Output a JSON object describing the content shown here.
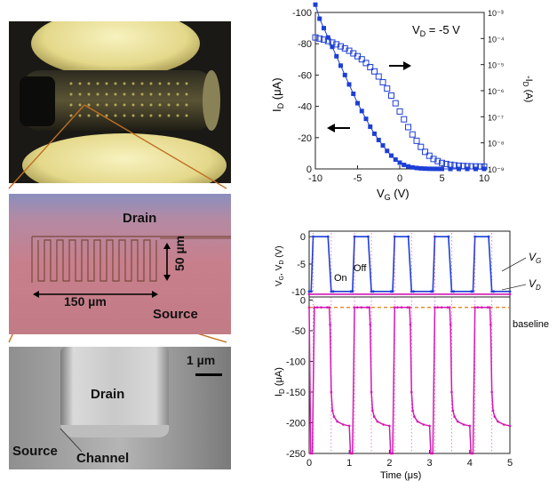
{
  "panels": {
    "optical": {
      "drain_label": "Drain",
      "source_label": "Source",
      "height_label": "50 µm",
      "width_label": "150 µm"
    },
    "sem": {
      "drain_label": "Drain",
      "source_label": "Source",
      "channel_label": "Channel",
      "scale_label": "1 µm"
    }
  },
  "chart_data": [
    {
      "type": "line",
      "annotation": "VD = -5 V",
      "xlabel": "VG (V)",
      "ylabel_left": "ID (µA)",
      "ylabel_right": "-ID (A)",
      "xlim": [
        -10,
        10
      ],
      "ylim_left": [
        0,
        -100
      ],
      "ylim_right_log": [
        1e-09,
        0.001
      ],
      "x_ticks": [
        "-10",
        "-5",
        "0",
        "5",
        "10"
      ],
      "y_ticks_left": [
        "-100",
        "-80",
        "-60",
        "-40",
        "-20",
        "0"
      ],
      "y_ticks_right": [
        "10⁻³",
        "10⁻⁴",
        "10⁻⁵",
        "10⁻⁶",
        "10⁻⁷",
        "10⁻⁸",
        "10⁻⁹"
      ],
      "series": [
        {
          "axis": "left",
          "marker": "filled-square",
          "color": "#1d3fd6",
          "x": [
            -10,
            -9.5,
            -9,
            -8.5,
            -8,
            -7.5,
            -7,
            -6.5,
            -6,
            -5.5,
            -5,
            -4.5,
            -4,
            -3.5,
            -3,
            -2.5,
            -2,
            -1.5,
            -1,
            -0.5,
            0,
            0.5,
            1,
            1.5,
            2,
            2.5,
            3,
            3.5,
            4,
            4.5,
            5,
            6,
            7,
            8,
            9,
            10
          ],
          "y": [
            -105,
            -96,
            -90,
            -84,
            -78,
            -72,
            -66,
            -60,
            -54,
            -48,
            -42,
            -37,
            -32,
            -27,
            -22.5,
            -18.5,
            -15,
            -11.5,
            -8.5,
            -6,
            -4,
            -2.6,
            -1.6,
            -1,
            -0.6,
            -0.35,
            -0.2,
            -0.1,
            -0.05,
            -0.03,
            -0.02,
            -0.01,
            0,
            0,
            0,
            0
          ]
        },
        {
          "axis": "right",
          "marker": "open-square",
          "color": "#1d3fd6",
          "x": [
            -10,
            -9.5,
            -9,
            -8.5,
            -8,
            -7.5,
            -7,
            -6.5,
            -6,
            -5.5,
            -5,
            -4.5,
            -4,
            -3.5,
            -3,
            -2.5,
            -2,
            -1.5,
            -1,
            -0.5,
            0,
            0.5,
            1,
            1.5,
            2,
            2.5,
            3,
            3.5,
            4,
            4.5,
            5,
            5.5,
            6,
            6.5,
            7,
            7.5,
            8,
            8.5,
            9,
            9.5,
            10
          ],
          "y": [
            0.00011,
            0.0001,
            9e-05,
            8e-05,
            7e-05,
            6e-05,
            5e-05,
            4.2e-05,
            3.4e-05,
            2.7e-05,
            2.1e-05,
            1.6e-05,
            1.15e-05,
            8e-06,
            5.5e-06,
            3.5e-06,
            2.1e-06,
            1.2e-06,
            6.5e-07,
            3.3e-07,
            1.6e-07,
            8e-08,
            4e-08,
            2.1e-08,
            1.2e-08,
            7e-09,
            4.5e-09,
            3.2e-09,
            2.4e-09,
            2e-09,
            1.7e-09,
            1.55e-09,
            1.45e-09,
            1.38e-09,
            1.33e-09,
            1.3e-09,
            1.28e-09,
            1.26e-09,
            1.25e-09,
            1.24e-09,
            1.23e-09
          ]
        }
      ]
    },
    {
      "type": "line",
      "subplot": "top",
      "xlim": [
        0,
        5
      ],
      "ylim": [
        -11,
        1
      ],
      "ylabel": "VG, VD (V)",
      "y_ticks": [
        "0",
        "-5",
        "-10"
      ],
      "labels": {
        "on": "On",
        "off": "Off",
        "vg": "VG",
        "vd": "VD"
      },
      "series": [
        {
          "name": "VG",
          "color": "#1d3fd6",
          "x": [
            0,
            0.05,
            0.1,
            0.47,
            0.55,
            0.6,
            1.04,
            1.08,
            1.13,
            1.47,
            1.55,
            1.6,
            2.04,
            2.08,
            2.13,
            2.47,
            2.55,
            2.6,
            3.04,
            3.08,
            3.13,
            3.47,
            3.55,
            3.6,
            4.04,
            4.08,
            4.13,
            4.47,
            4.55,
            4.6,
            5
          ],
          "y": [
            -10,
            -10,
            0,
            0,
            -10,
            -10,
            -10,
            -10,
            0,
            0,
            -10,
            -10,
            -10,
            -10,
            0,
            0,
            -10,
            -10,
            -10,
            -10,
            0,
            0,
            -10,
            -10,
            -10,
            -10,
            0,
            0,
            -10,
            -10,
            -10
          ]
        },
        {
          "name": "VD",
          "color": "#d51ab4",
          "x": [
            0,
            5
          ],
          "y": [
            -10.5,
            -10.5
          ]
        }
      ]
    },
    {
      "type": "line",
      "subplot": "bottom",
      "xlabel": "Time (µs)",
      "ylabel": "ID (µA)",
      "xlim": [
        0,
        5
      ],
      "ylim": [
        -250,
        5
      ],
      "x_ticks": [
        "0",
        "1",
        "2",
        "3",
        "4",
        "5"
      ],
      "y_ticks": [
        "0",
        "-50",
        "-100",
        "-150",
        "-200",
        "-250"
      ],
      "baseline_label": "baseline",
      "baseline_value": -12,
      "series": [
        {
          "name": "ID",
          "color": "#d51ab4",
          "x": [
            0,
            0.04,
            0.08,
            0.13,
            0.2,
            0.3,
            0.45,
            0.5,
            0.52,
            0.55,
            0.58,
            0.62,
            0.7,
            0.85,
            1.0,
            1.03,
            1.06,
            1.08,
            1.13,
            1.2,
            1.3,
            1.45,
            1.5,
            1.52,
            1.55,
            1.58,
            1.62,
            1.7,
            1.85,
            2.0,
            2.03,
            2.06,
            2.08,
            2.13,
            2.2,
            2.3,
            2.45,
            2.5,
            2.52,
            2.55,
            2.58,
            2.62,
            2.7,
            2.85,
            3.0,
            3.03,
            3.06,
            3.08,
            3.13,
            3.2,
            3.3,
            3.45,
            3.5,
            3.52,
            3.55,
            3.58,
            3.62,
            3.7,
            3.85,
            4.0,
            4.03,
            4.06,
            4.08,
            4.13,
            4.2,
            4.3,
            4.45,
            4.5,
            4.52,
            4.55,
            4.58,
            4.62,
            4.7,
            4.85,
            5.0
          ],
          "y": [
            -12,
            -250,
            -250,
            -12,
            -12,
            -12,
            -12,
            -12,
            -40,
            -150,
            -180,
            -190,
            -198,
            -203,
            -205,
            -250,
            -250,
            -250,
            -12,
            -12,
            -12,
            -12,
            -12,
            -40,
            -150,
            -180,
            -190,
            -198,
            -203,
            -205,
            -250,
            -250,
            -250,
            -12,
            -12,
            -12,
            -12,
            -12,
            -40,
            -150,
            -180,
            -190,
            -198,
            -203,
            -205,
            -250,
            -250,
            -250,
            -12,
            -12,
            -12,
            -12,
            -12,
            -40,
            -150,
            -180,
            -190,
            -198,
            -203,
            -205,
            -250,
            -250,
            -250,
            -12,
            -12,
            -12,
            -12,
            -12,
            -40,
            -150,
            -180,
            -190,
            -198,
            -203,
            -205
          ]
        }
      ]
    }
  ]
}
